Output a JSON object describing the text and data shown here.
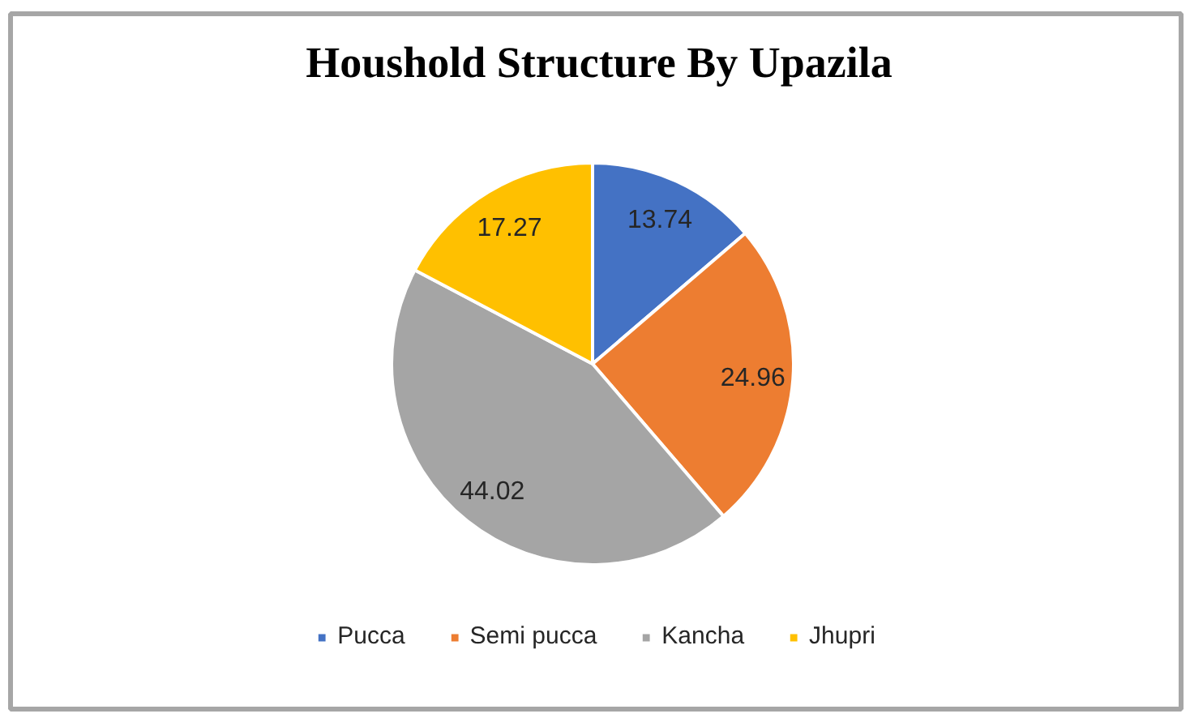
{
  "chart_data": {
    "type": "pie",
    "title": "Houshold Structure By Upazila",
    "categories": [
      "Pucca",
      "Semi pucca",
      "Kancha",
      "Jhupri"
    ],
    "values": [
      13.74,
      24.96,
      44.02,
      17.27
    ],
    "colors": [
      "#4472c4",
      "#ed7d31",
      "#a5a5a5",
      "#ffc000"
    ],
    "data_labels": true,
    "legend": "bottom"
  }
}
